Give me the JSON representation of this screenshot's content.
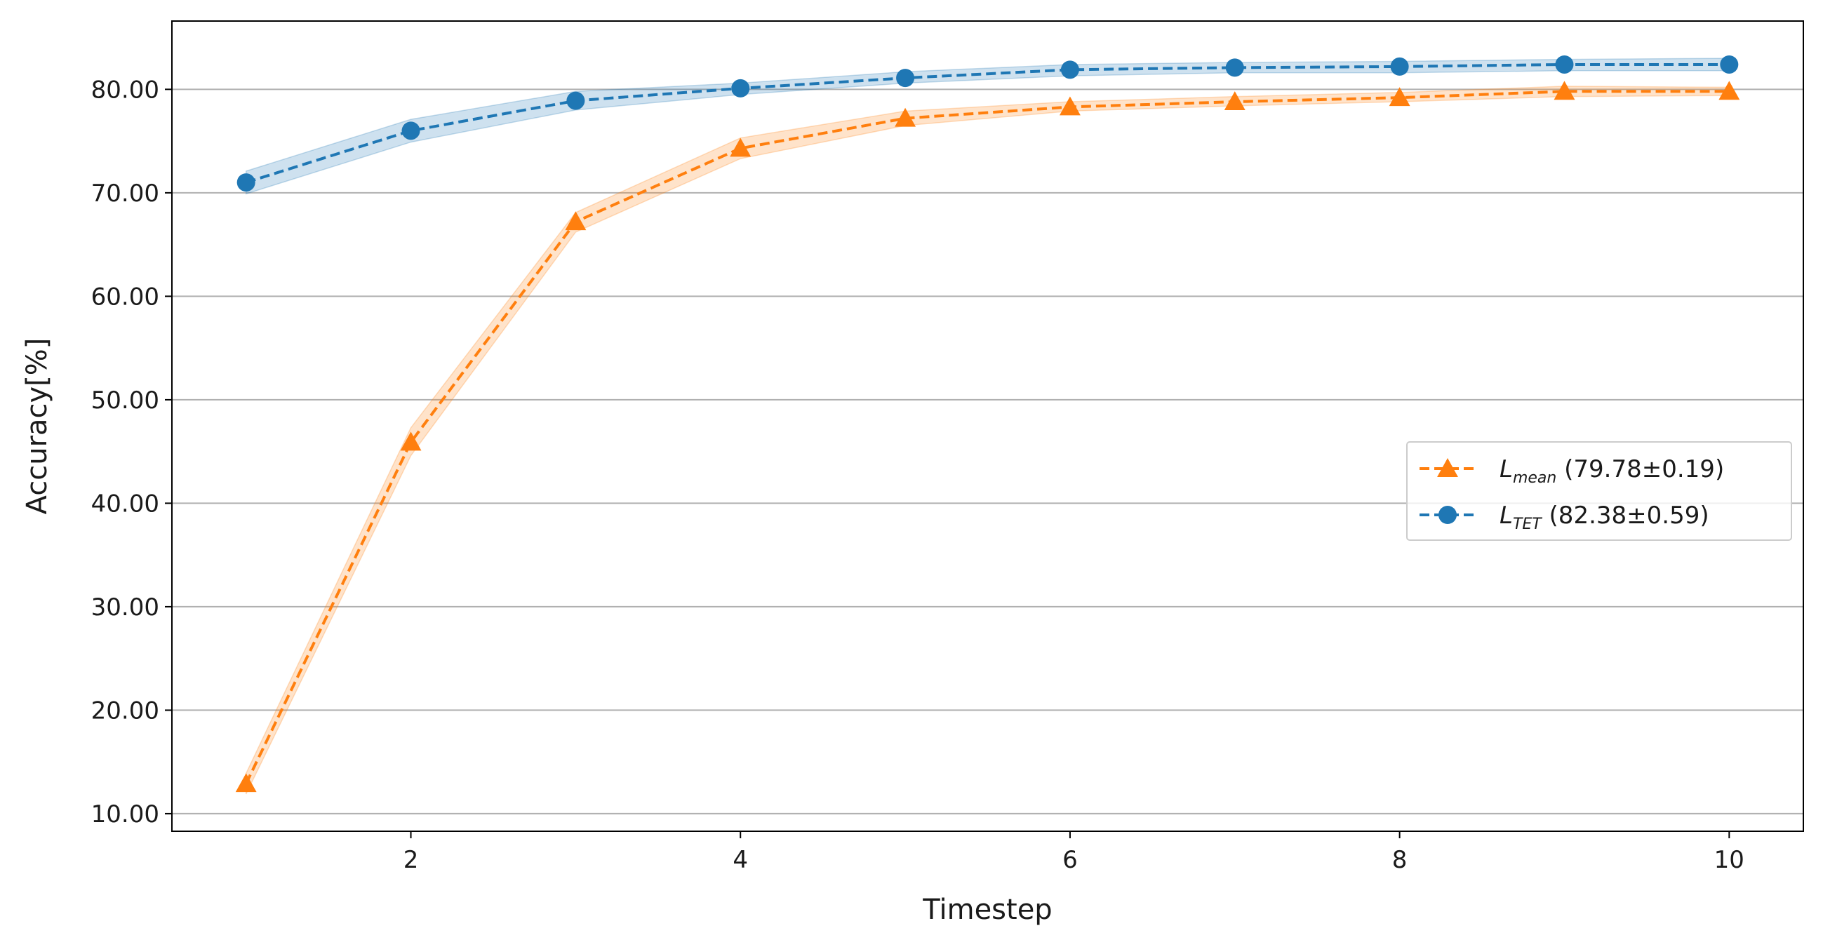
{
  "chart_data": {
    "type": "line",
    "xlabel": "Timestep",
    "ylabel": "Accuracy[%]",
    "xlim": [
      0.55,
      10.45
    ],
    "ylim": [
      8.3,
      86.6
    ],
    "x_ticks": [
      2,
      4,
      6,
      8,
      10
    ],
    "y_ticks": [
      10,
      20,
      30,
      40,
      50,
      60,
      70,
      80
    ],
    "y_tick_labels": [
      "10.00",
      "20.00",
      "30.00",
      "40.00",
      "50.00",
      "60.00",
      "70.00",
      "80.00"
    ],
    "grid": "horizontal",
    "legend_position": "center-right",
    "x": [
      1,
      2,
      3,
      4,
      5,
      6,
      7,
      8,
      9,
      10
    ],
    "series": [
      {
        "name_main": "L",
        "name_sub": "mean",
        "name_value": " (79.78±0.19)",
        "color": "#ff7f0e",
        "marker": "triangle",
        "line_style": "dashed",
        "values": [
          12.9,
          45.9,
          67.2,
          74.3,
          77.2,
          78.3,
          78.8,
          79.2,
          79.8,
          79.8
        ],
        "band_lower": [
          11.9,
          44.6,
          66.2,
          73.3,
          76.5,
          77.9,
          78.4,
          78.8,
          79.3,
          79.4
        ],
        "band_upper": [
          13.9,
          47.3,
          68.1,
          75.3,
          77.9,
          78.8,
          79.3,
          79.7,
          80.3,
          80.2
        ]
      },
      {
        "name_main": "L",
        "name_sub": "TET",
        "name_value": " (82.38±0.59)",
        "color": "#1f77b4",
        "marker": "circle",
        "line_style": "dashed",
        "values": [
          71.0,
          76.0,
          78.9,
          80.1,
          81.1,
          81.9,
          82.1,
          82.2,
          82.4,
          82.4
        ],
        "band_lower": [
          69.9,
          74.9,
          78.0,
          79.5,
          80.6,
          81.3,
          81.6,
          81.6,
          81.8,
          81.8
        ],
        "band_upper": [
          72.1,
          77.1,
          79.8,
          80.6,
          81.7,
          82.4,
          82.6,
          82.7,
          82.9,
          83.0
        ]
      }
    ]
  }
}
